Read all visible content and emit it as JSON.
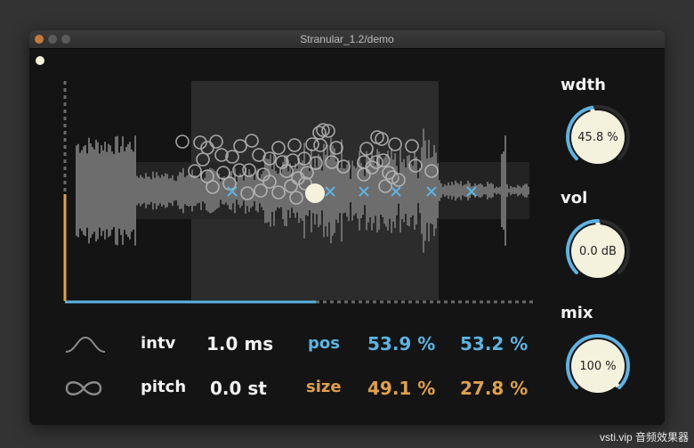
{
  "window": {
    "title": "Stranular_1.2/demo"
  },
  "params": {
    "intv_label": "intv",
    "intv_value": "1.0 ms",
    "pitch_label": "pitch",
    "pitch_value": "0.0 st",
    "pos_label": "pos",
    "pos_value_1": "53.9 %",
    "pos_value_2": "53.2 %",
    "size_label": "size",
    "size_value_1": "49.1 %",
    "size_value_2": "27.8 %"
  },
  "knobs": {
    "wdth": {
      "label": "wdth",
      "value": "45.8 %",
      "level": 0.458
    },
    "vol": {
      "label": "vol",
      "value": "0.0 dB",
      "level": 0.5
    },
    "mix": {
      "label": "mix",
      "value": "100 %",
      "level": 1.0
    }
  },
  "display": {
    "playhead_fraction": 0.54,
    "vertical_level_fraction": 0.73
  },
  "icons": {
    "envelope": "envelope-curve-icon",
    "loop": "infinity-loop-icon"
  },
  "colors": {
    "accent_blue": "#5cb3e2",
    "accent_orange": "#e0a04c",
    "knob_face": "#f4f1dc",
    "background": "#141414"
  },
  "watermark": "vsti.vip 音频效果器"
}
